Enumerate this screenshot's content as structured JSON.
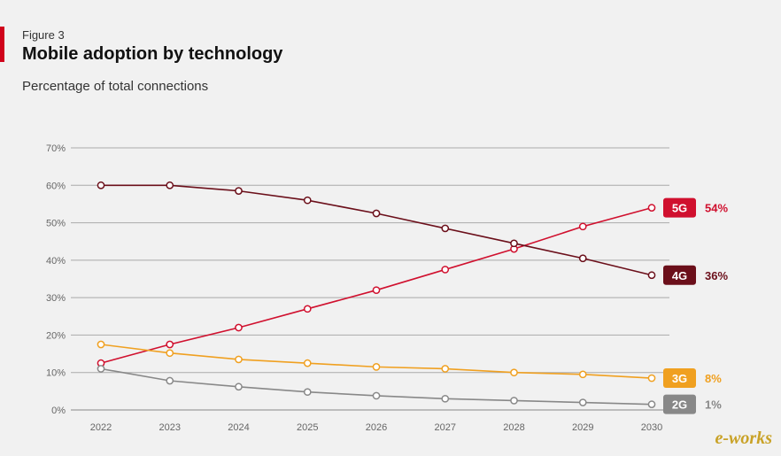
{
  "header": {
    "figure_label": "Figure 3",
    "title": "Mobile adoption by technology",
    "subtitle": "Percentage of total connections"
  },
  "watermark": "e-works",
  "chart_data": {
    "type": "line",
    "title": "Mobile adoption by technology",
    "subtitle": "Percentage of total connections",
    "x": [
      "2022",
      "2023",
      "2024",
      "2025",
      "2026",
      "2027",
      "2028",
      "2029",
      "2030"
    ],
    "yticks": [
      "0%",
      "10%",
      "20%",
      "30%",
      "40%",
      "50%",
      "60%",
      "70%"
    ],
    "ylim": [
      0,
      70
    ],
    "grid": true,
    "series": [
      {
        "name": "5G",
        "label": "54%",
        "color": "#d0102e",
        "values": [
          12.5,
          17.5,
          22,
          27,
          32,
          37.5,
          43,
          49,
          54
        ]
      },
      {
        "name": "4G",
        "label": "36%",
        "color": "#6b0f1a",
        "values": [
          60,
          60,
          58.5,
          56,
          52.5,
          48.5,
          44.5,
          40.5,
          36
        ]
      },
      {
        "name": "3G",
        "label": "8%",
        "color": "#f0a020",
        "values": [
          17.5,
          15.2,
          13.5,
          12.5,
          11.5,
          11,
          10,
          9.5,
          8.5
        ]
      },
      {
        "name": "2G",
        "label": "1%",
        "color": "#888888",
        "values": [
          11,
          7.8,
          6.2,
          4.8,
          3.8,
          3,
          2.5,
          2,
          1.5
        ]
      }
    ]
  }
}
